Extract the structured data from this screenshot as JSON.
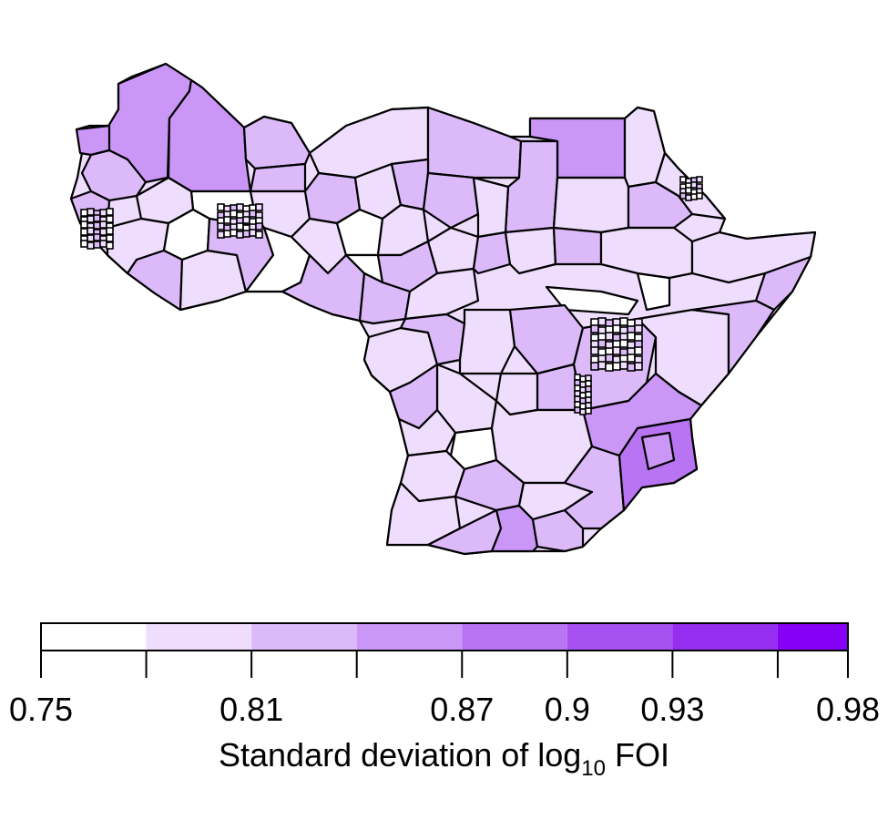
{
  "legend": {
    "title_prefix": "Standard deviation of log",
    "title_subscript": "10",
    "title_suffix": " FOI",
    "breaks": [
      0.75,
      0.78,
      0.81,
      0.84,
      0.87,
      0.9,
      0.93,
      0.96,
      0.98
    ],
    "labels": [
      "0.75",
      "0.81",
      "0.87",
      "0.9",
      "0.93",
      "0.98"
    ],
    "label_values": [
      0.75,
      0.81,
      0.87,
      0.9,
      0.93,
      0.98
    ],
    "colors": [
      "#ffffff",
      "#eeddfc",
      "#dcbaf9",
      "#cb97f7",
      "#b974f3",
      "#a751f0",
      "#962ef0",
      "#8500f5"
    ]
  },
  "chart_data": {
    "type": "heatmap",
    "map_region": "",
    "color_scale": {
      "breaks": [
        0.75,
        0.78,
        0.81,
        0.84,
        0.87,
        0.9,
        0.93,
        0.96,
        0.98
      ],
      "colors": [
        "#ffffff",
        "#eeddfc",
        "#dcbaf9",
        "#cb97f7",
        "#b974f3",
        "#a751f0",
        "#962ef0",
        "#8500f5"
      ]
    },
    "xlabel": "Standard deviation of log10 FOI",
    "ticks": [
      "0.75",
      "0.81",
      "0.87",
      "0.9",
      "0.93",
      "0.98"
    ]
  }
}
